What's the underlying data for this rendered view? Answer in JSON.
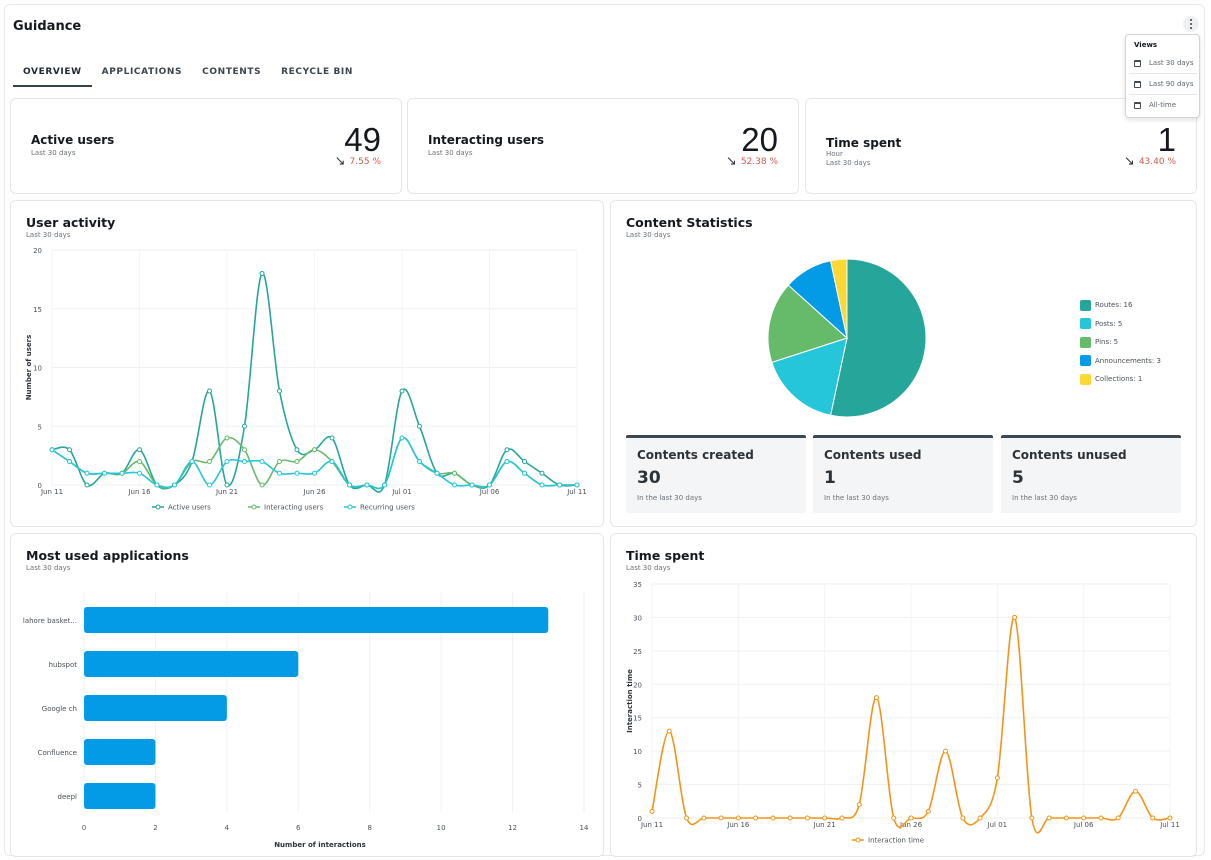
{
  "header": {
    "title": "Guidance",
    "menu_icon": "vertical-ellipsis-icon"
  },
  "tabs": [
    {
      "label": "OVERVIEW",
      "active": true
    },
    {
      "label": "APPLICATIONS",
      "active": false
    },
    {
      "label": "CONTENTS",
      "active": false
    },
    {
      "label": "RECYCLE BIN",
      "active": false
    }
  ],
  "views_menu": {
    "title": "Views",
    "items": [
      {
        "label": "Last 30 days",
        "icon": "calendar-icon"
      },
      {
        "label": "Last 90 days",
        "icon": "calendar-icon"
      },
      {
        "label": "All-time",
        "icon": "calendar-icon"
      }
    ]
  },
  "kpis": [
    {
      "label": "Active users",
      "unit": "",
      "period": "Last 30 days",
      "value": "49",
      "trend": "7.55 %",
      "trend_icon": "arrow-down-right-icon",
      "trend_color": "#d05a50"
    },
    {
      "label": "Interacting users",
      "unit": "",
      "period": "Last 30 days",
      "value": "20",
      "trend": "52.38 %",
      "trend_icon": "arrow-down-right-icon",
      "trend_color": "#d05a50"
    },
    {
      "label": "Time spent",
      "unit": "Hour",
      "period": "Last 30 days",
      "value": "1",
      "trend": "43.40 %",
      "trend_icon": "arrow-down-right-icon",
      "trend_color": "#d05a50"
    }
  ],
  "user_activity": {
    "title": "User activity",
    "period": "Last 30 days"
  },
  "content_statistics": {
    "title": "Content Statistics",
    "period": "Last 30 days",
    "legend": [
      {
        "label": "Routes: 16",
        "color": "#26a69a"
      },
      {
        "label": "Posts: 5",
        "color": "#26c6da"
      },
      {
        "label": "Pins: 5",
        "color": "#66bb6a"
      },
      {
        "label": "Announcements: 3",
        "color": "#039be5"
      },
      {
        "label": "Collections: 1",
        "color": "#fdd835"
      }
    ],
    "stats": [
      {
        "label": "Contents created",
        "value": "30",
        "sub": "In the last 30 days"
      },
      {
        "label": "Contents used",
        "value": "1",
        "sub": "In the last 30 days"
      },
      {
        "label": "Contents unused",
        "value": "5",
        "sub": "In the last 30 days"
      }
    ]
  },
  "most_used_apps": {
    "title": "Most used applications",
    "period": "Last 30 days"
  },
  "time_spent": {
    "title": "Time spent",
    "period": "Last 30 days"
  },
  "chart_data": [
    {
      "type": "line",
      "ylabel": "Number of users",
      "ylim": [
        0,
        20
      ],
      "yticks": [
        0,
        5,
        10,
        15,
        20
      ],
      "xtick_labels": [
        "Jun 11",
        "Jun 16",
        "Jun 21",
        "Jun 26",
        "Jul 01",
        "Jul 06",
        "Jul 11"
      ],
      "x": [
        "Jun 11",
        "Jun 12",
        "Jun 13",
        "Jun 14",
        "Jun 15",
        "Jun 16",
        "Jun 17",
        "Jun 18",
        "Jun 19",
        "Jun 20",
        "Jun 21",
        "Jun 22",
        "Jun 23",
        "Jun 24",
        "Jun 25",
        "Jun 26",
        "Jun 27",
        "Jun 28",
        "Jun 29",
        "Jun 30",
        "Jul 01",
        "Jul 02",
        "Jul 03",
        "Jul 04",
        "Jul 05",
        "Jul 06",
        "Jul 07",
        "Jul 08",
        "Jul 09",
        "Jul 10",
        "Jul 11"
      ],
      "legend_position": "bottom",
      "grid": true,
      "series": [
        {
          "name": "Active users",
          "color": "#26a69a",
          "values": [
            3,
            3,
            0,
            1,
            1,
            3,
            0,
            0,
            2,
            8,
            0,
            5,
            18,
            8,
            3,
            3,
            4,
            0,
            0,
            0,
            8,
            5,
            1,
            1,
            0,
            0,
            3,
            2,
            1,
            0,
            0
          ]
        },
        {
          "name": "Interacting users",
          "color": "#66bb6a",
          "values": [
            3,
            2,
            1,
            1,
            1,
            2,
            0,
            0,
            2,
            2,
            4,
            3,
            0,
            2,
            2,
            3,
            2,
            0,
            0,
            0,
            4,
            2,
            1,
            1,
            0,
            0,
            2,
            1,
            0,
            0,
            0
          ]
        },
        {
          "name": "Recurring users",
          "color": "#26c6da",
          "values": [
            3,
            2,
            1,
            1,
            1,
            1,
            0,
            0,
            2,
            0,
            2,
            2,
            2,
            1,
            1,
            1,
            2,
            0,
            0,
            0,
            4,
            2,
            1,
            0,
            0,
            0,
            2,
            1,
            0,
            0,
            0
          ]
        }
      ]
    },
    {
      "type": "pie",
      "categories": [
        "Routes",
        "Posts",
        "Pins",
        "Announcements",
        "Collections"
      ],
      "values": [
        16,
        5,
        5,
        3,
        1
      ],
      "colors": [
        "#26a69a",
        "#26c6da",
        "#66bb6a",
        "#039be5",
        "#fdd835"
      ],
      "legend_position": "right"
    },
    {
      "type": "bar",
      "orientation": "horizontal",
      "categories": [
        "lahore basket...",
        "hubspot",
        "Google ch",
        "Confluence",
        "deepl"
      ],
      "values": [
        13,
        6,
        4,
        2,
        2
      ],
      "xlabel": "Number of interactions",
      "xlim": [
        0,
        14
      ],
      "xticks": [
        0,
        2,
        4,
        6,
        8,
        10,
        12,
        14
      ],
      "color": "#039be5",
      "grid": true
    },
    {
      "type": "line",
      "ylabel": "Interaction time",
      "ylim": [
        0,
        35
      ],
      "yticks": [
        0,
        5,
        10,
        15,
        20,
        25,
        30,
        35
      ],
      "xtick_labels": [
        "Jun 11",
        "Jun 16",
        "Jun 21",
        "Jun 26",
        "Jul 01",
        "Jul 06",
        "Jul 11"
      ],
      "x": [
        "Jun 11",
        "Jun 12",
        "Jun 13",
        "Jun 14",
        "Jun 15",
        "Jun 16",
        "Jun 17",
        "Jun 18",
        "Jun 19",
        "Jun 20",
        "Jun 21",
        "Jun 22",
        "Jun 23",
        "Jun 24",
        "Jun 25",
        "Jun 26",
        "Jun 27",
        "Jun 28",
        "Jun 29",
        "Jun 30",
        "Jul 01",
        "Jul 02",
        "Jul 03",
        "Jul 04",
        "Jul 05",
        "Jul 06",
        "Jul 07",
        "Jul 08",
        "Jul 09",
        "Jul 10",
        "Jul 11"
      ],
      "legend_position": "bottom",
      "grid": true,
      "series": [
        {
          "name": "Interaction time",
          "color": "#f39419",
          "values": [
            1,
            13,
            0,
            0,
            0,
            0,
            0,
            0,
            0,
            0,
            0,
            0,
            2,
            18,
            0,
            0,
            1,
            10,
            0,
            0,
            6,
            30,
            0,
            0,
            0,
            0,
            0,
            0,
            4,
            0,
            0
          ]
        }
      ]
    }
  ]
}
